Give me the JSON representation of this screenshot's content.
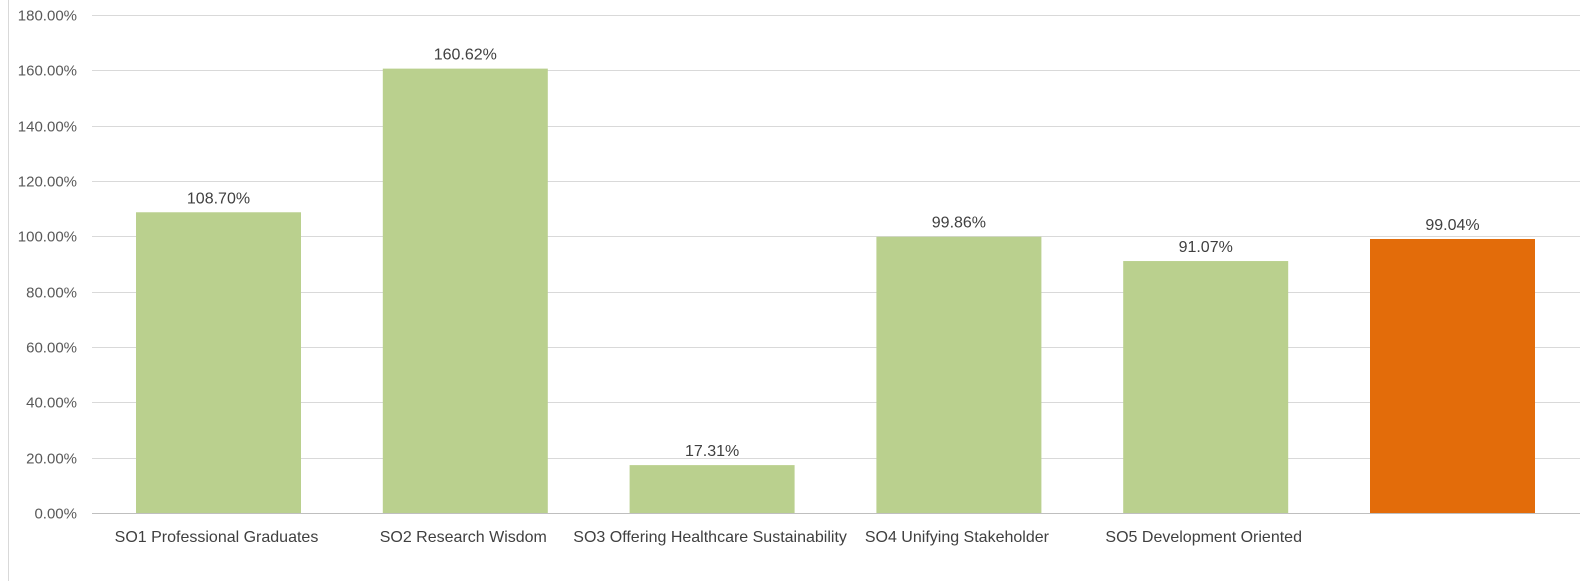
{
  "chart_data": {
    "type": "bar",
    "categories": [
      "SO1 Professional Graduates",
      "SO2 Research Wisdom",
      "SO3 Offering Healthcare Sustainability",
      "SO4 Unifying Stakeholder",
      "SO5 Development Oriented",
      ""
    ],
    "values": [
      108.7,
      160.62,
      17.31,
      99.86,
      91.07,
      99.04
    ],
    "data_labels": [
      "108.70%",
      "160.62%",
      "17.31%",
      "99.86%",
      "91.07%",
      "99.04%"
    ],
    "bar_colors": [
      "#bad08e",
      "#bad08e",
      "#bad08e",
      "#bad08e",
      "#bad08e",
      "#e36c0a"
    ],
    "y_ticks": [
      "0.00%",
      "20.00%",
      "40.00%",
      "60.00%",
      "80.00%",
      "100.00%",
      "120.00%",
      "140.00%",
      "160.00%",
      "180.00%"
    ],
    "ylim": [
      0,
      180
    ],
    "grid": true,
    "title": "",
    "xlabel": "",
    "ylabel": ""
  }
}
